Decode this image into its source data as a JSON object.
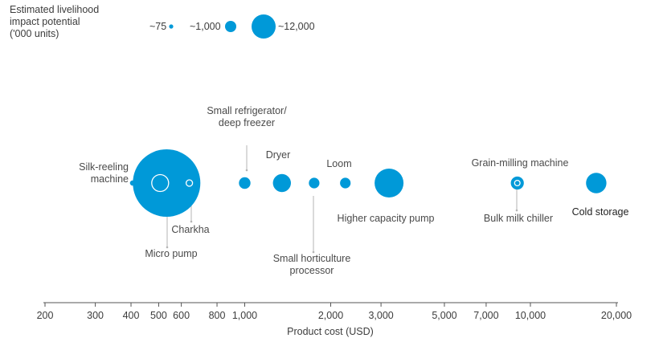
{
  "legend": {
    "title_lines": [
      "Estimated livelihood",
      "impact potential",
      "('000 units)"
    ],
    "items": [
      {
        "label": "~75",
        "value": 75
      },
      {
        "label": "~1,000",
        "value": 1000
      },
      {
        "label": "~12,000",
        "value": 12000
      }
    ]
  },
  "chart_data": {
    "type": "scatter",
    "xscale": "log",
    "xlabel": "Product cost (USD)",
    "xlim": [
      200,
      20000
    ],
    "xticks": [
      {
        "value": 200,
        "label": "200"
      },
      {
        "value": 300,
        "label": "300"
      },
      {
        "value": 400,
        "label": "400"
      },
      {
        "value": 500,
        "label": "500"
      },
      {
        "value": 600,
        "label": "600"
      },
      {
        "value": 800,
        "label": "800"
      },
      {
        "value": 1000,
        "label": "1,000"
      },
      {
        "value": 2000,
        "label": "2,000"
      },
      {
        "value": 3000,
        "label": "3,000"
      },
      {
        "value": 5000,
        "label": "5,000"
      },
      {
        "value": 7000,
        "label": "7,000"
      },
      {
        "value": 10000,
        "label": "10,000"
      },
      {
        "value": 20000,
        "label": "20,000"
      }
    ],
    "size_label": "Estimated livelihood impact potential ('000 units)",
    "points": [
      {
        "name": "Micro pump",
        "label_lines": [
          "Micro pump"
        ],
        "cost": 540,
        "impact": 12000,
        "style": "filled"
      },
      {
        "name": "Silk-reeling machine",
        "label_lines": [
          "Silk-reeling",
          "machine"
        ],
        "cost": 405,
        "impact": 60,
        "style": "filled"
      },
      {
        "name": "Charkha",
        "label_lines": [
          "Charkha"
        ],
        "cost": 540,
        "impact": 750,
        "style": "outline"
      },
      {
        "name": "Charkha (small)",
        "label_lines": [],
        "cost": 640,
        "impact": 110,
        "style": "outline"
      },
      {
        "name": "Small refrigerator/ deep freezer",
        "label_lines": [
          "Small refrigerator/",
          "deep freezer"
        ],
        "cost": 1000,
        "impact": 350,
        "style": "filled"
      },
      {
        "name": "Dryer",
        "label_lines": [
          "Dryer"
        ],
        "cost": 1350,
        "impact": 850,
        "style": "filled"
      },
      {
        "name": "Small horticulture processor",
        "label_lines": [
          "Small horticulture",
          "processor"
        ],
        "cost": 1750,
        "impact": 300,
        "style": "filled"
      },
      {
        "name": "Loom",
        "label_lines": [
          "Loom"
        ],
        "cost": 2250,
        "impact": 300,
        "style": "filled"
      },
      {
        "name": "Higher capacity pump",
        "label_lines": [
          "Higher capacity pump"
        ],
        "cost": 3200,
        "impact": 2200,
        "style": "filled"
      },
      {
        "name": "Grain-milling machine",
        "label_lines": [
          "Grain-milling machine"
        ],
        "cost": 9000,
        "impact": 450,
        "style": "filled"
      },
      {
        "name": "Bulk milk chiller",
        "label_lines": [
          "Bulk milk chiller"
        ],
        "cost": 9000,
        "impact": 30,
        "style": "outline"
      },
      {
        "name": "Cold storage",
        "label_lines": [
          "Cold storage"
        ],
        "cost": 17000,
        "impact": 1100,
        "style": "filled"
      }
    ]
  },
  "colors": {
    "bubble": "#0099d8",
    "outline": "#ffffff",
    "axis": "#555555",
    "leader": "#b5b5b5",
    "text": "#4a4a4a"
  }
}
